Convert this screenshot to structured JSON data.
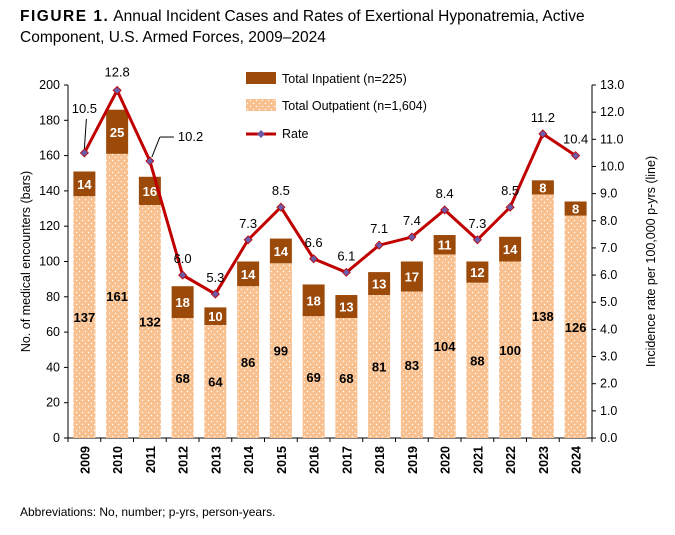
{
  "figure": {
    "label": "FIGURE 1.",
    "title": "Annual Incident Cases and Rates of Exertional Hyponatremia, Active Component, U.S. Armed Forces, 2009–2024",
    "footnote": "Abbreviations: No, number; p-yrs, person-years."
  },
  "chart_data": {
    "type": "bar",
    "stacked": true,
    "categories": [
      "2009",
      "2010",
      "2011",
      "2012",
      "2013",
      "2014",
      "2015",
      "2016",
      "2017",
      "2018",
      "2019",
      "2020",
      "2021",
      "2022",
      "2023",
      "2024"
    ],
    "series": [
      {
        "name": "Total Outpatient (n=1,604)",
        "type": "bar",
        "axis": "left",
        "color": "#F9C08F",
        "values": [
          137,
          161,
          132,
          68,
          64,
          86,
          99,
          69,
          68,
          81,
          83,
          104,
          88,
          100,
          138,
          126
        ]
      },
      {
        "name": "Total Inpatient (n=225)",
        "type": "bar",
        "axis": "left",
        "color": "#9C4A0A",
        "values": [
          14,
          25,
          16,
          18,
          10,
          14,
          14,
          18,
          13,
          13,
          17,
          11,
          12,
          14,
          8,
          8
        ]
      },
      {
        "name": "Rate",
        "type": "line",
        "axis": "right",
        "color": "#C00000",
        "marker_color": "#6B5BA8",
        "values": [
          10.5,
          12.8,
          10.2,
          6.0,
          5.3,
          7.3,
          8.5,
          6.6,
          6.1,
          7.1,
          7.4,
          8.4,
          7.3,
          8.5,
          11.2,
          10.4
        ]
      }
    ],
    "ylabel_left": "No. of medical encounters (bars)",
    "ylabel_right": "Incidence rate per 100,000 p-yrs (line)",
    "ylim_left": [
      0,
      200
    ],
    "yticks_left": [
      0,
      20,
      40,
      60,
      80,
      100,
      120,
      140,
      160,
      180,
      200
    ],
    "ylim_right": [
      0,
      13
    ],
    "yticks_right": [
      "0.0",
      "1.0",
      "2.0",
      "3.0",
      "4.0",
      "5.0",
      "6.0",
      "7.0",
      "8.0",
      "9.0",
      "10.0",
      "11.0",
      "12.0",
      "13.0"
    ],
    "legend_position": "top-center",
    "grid": false
  }
}
